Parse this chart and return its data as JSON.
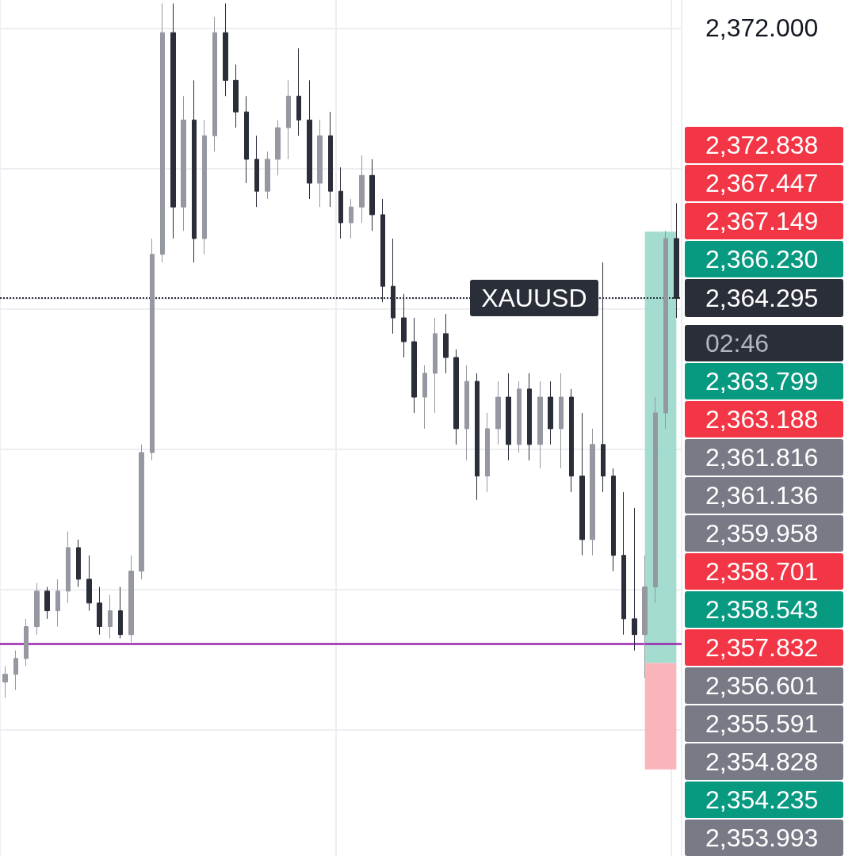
{
  "chart_data": {
    "type": "candlestick",
    "categories": [
      null,
      null,
      null,
      null,
      null,
      null,
      null,
      null,
      null,
      null,
      null,
      null,
      null,
      null,
      null,
      null,
      null,
      null,
      null,
      null,
      null,
      null,
      null,
      null,
      null,
      null,
      null,
      null,
      null,
      null,
      null,
      null,
      null,
      null,
      null,
      null,
      null,
      null,
      null,
      null,
      null,
      null,
      null,
      null,
      null,
      null,
      null,
      null,
      null,
      null,
      null,
      null,
      null,
      null,
      null,
      null,
      null,
      null,
      null,
      null,
      null,
      null,
      null,
      null,
      null
    ],
    "ohlc": [
      [
        2353.36,
        2353.81,
        2352.91,
        2353.58
      ],
      [
        2353.58,
        2354.26,
        2353.13,
        2354.03
      ],
      [
        2354.03,
        2355.16,
        2353.81,
        2354.94
      ],
      [
        2354.94,
        2356.18,
        2354.71,
        2355.95
      ],
      [
        2355.95,
        2356.07,
        2355.16,
        2355.39
      ],
      [
        2355.39,
        2356.29,
        2354.94,
        2355.95
      ],
      [
        2355.95,
        2357.65,
        2355.61,
        2357.19
      ],
      [
        2357.19,
        2357.42,
        2356.07,
        2356.29
      ],
      [
        2356.29,
        2356.97,
        2355.39,
        2355.61
      ],
      [
        2355.61,
        2356.07,
        2354.71,
        2354.94
      ],
      [
        2354.94,
        2355.84,
        2354.6,
        2355.39
      ],
      [
        2355.39,
        2356.07,
        2354.6,
        2354.71
      ],
      [
        2354.71,
        2356.97,
        2354.49,
        2356.52
      ],
      [
        2356.52,
        2360.13,
        2356.29,
        2359.9
      ],
      [
        2359.9,
        2366.0,
        2359.68,
        2365.55
      ],
      [
        2365.55,
        2372.7,
        2365.32,
        2371.87
      ],
      [
        2371.87,
        2372.7,
        2366.0,
        2366.9
      ],
      [
        2366.9,
        2370.06,
        2366.22,
        2369.38
      ],
      [
        2369.38,
        2370.51,
        2365.32,
        2366.0
      ],
      [
        2366.0,
        2369.38,
        2365.55,
        2368.93
      ],
      [
        2368.93,
        2372.32,
        2368.48,
        2371.87
      ],
      [
        2371.87,
        2372.7,
        2370.06,
        2370.51
      ],
      [
        2370.51,
        2370.96,
        2369.16,
        2369.61
      ],
      [
        2369.61,
        2370.06,
        2367.58,
        2368.26
      ],
      [
        2368.26,
        2368.93,
        2366.9,
        2367.35
      ],
      [
        2367.35,
        2368.48,
        2367.13,
        2368.26
      ],
      [
        2368.26,
        2369.38,
        2367.8,
        2369.16
      ],
      [
        2369.16,
        2370.51,
        2368.26,
        2370.06
      ],
      [
        2370.06,
        2371.42,
        2368.93,
        2369.38
      ],
      [
        2369.38,
        2370.51,
        2367.13,
        2367.58
      ],
      [
        2367.58,
        2369.38,
        2366.9,
        2368.93
      ],
      [
        2368.93,
        2369.61,
        2366.9,
        2367.35
      ],
      [
        2367.35,
        2368.03,
        2366.0,
        2366.45
      ],
      [
        2366.45,
        2367.13,
        2366.0,
        2366.9
      ],
      [
        2366.9,
        2368.37,
        2366.45,
        2367.8
      ],
      [
        2367.8,
        2368.26,
        2366.22,
        2366.68
      ],
      [
        2366.68,
        2367.13,
        2364.19,
        2364.64
      ],
      [
        2364.64,
        2366.0,
        2363.29,
        2363.74
      ],
      [
        2363.74,
        2364.42,
        2362.61,
        2363.06
      ],
      [
        2363.06,
        2363.74,
        2361.03,
        2361.48
      ],
      [
        2361.48,
        2362.39,
        2360.58,
        2362.16
      ],
      [
        2362.16,
        2363.74,
        2361.03,
        2363.29
      ],
      [
        2363.29,
        2363.85,
        2362.16,
        2362.61
      ],
      [
        2362.61,
        2362.84,
        2360.13,
        2360.58
      ],
      [
        2360.58,
        2362.39,
        2359.68,
        2361.93
      ],
      [
        2361.93,
        2362.16,
        2358.55,
        2359.23
      ],
      [
        2359.23,
        2361.03,
        2358.77,
        2360.58
      ],
      [
        2360.58,
        2361.93,
        2360.13,
        2361.48
      ],
      [
        2361.48,
        2362.16,
        2359.68,
        2360.13
      ],
      [
        2360.13,
        2361.93,
        2359.9,
        2361.71
      ],
      [
        2361.71,
        2362.16,
        2359.68,
        2360.13
      ],
      [
        2360.13,
        2361.93,
        2359.45,
        2361.48
      ],
      [
        2361.48,
        2361.93,
        2360.13,
        2360.58
      ],
      [
        2360.58,
        2362.16,
        2359.45,
        2361.48
      ],
      [
        2361.48,
        2361.71,
        2358.77,
        2359.23
      ],
      [
        2359.23,
        2361.03,
        2356.97,
        2357.42
      ],
      [
        2357.42,
        2360.58,
        2356.97,
        2360.13
      ],
      [
        2360.13,
        2365.32,
        2358.77,
        2359.23
      ],
      [
        2359.23,
        2359.45,
        2356.52,
        2356.97
      ],
      [
        2356.97,
        2358.77,
        2354.71,
        2355.16
      ],
      [
        2355.16,
        2358.32,
        2354.26,
        2354.71
      ],
      [
        2354.71,
        2356.97,
        2353.47,
        2356.07
      ],
      [
        2356.07,
        2361.48,
        2355.61,
        2361.03
      ],
      [
        2361.03,
        2366.22,
        2360.58,
        2366.0
      ],
      [
        2366.0,
        2367.01,
        2363.74,
        2364.295
      ]
    ],
    "colors": [
      "#9598a1",
      "#9598a1",
      "#9598a1",
      "#9598a1",
      "#2a2e39",
      "#9598a1",
      "#9598a1",
      "#2a2e39",
      "#2a2e39",
      "#2a2e39",
      "#9598a1",
      "#2a2e39",
      "#9598a1",
      "#9598a1",
      "#9598a1",
      "#9598a1",
      "#2a2e39",
      "#9598a1",
      "#2a2e39",
      "#9598a1",
      "#9598a1",
      "#2a2e39",
      "#2a2e39",
      "#2a2e39",
      "#2a2e39",
      "#9598a1",
      "#9598a1",
      "#9598a1",
      "#2a2e39",
      "#2a2e39",
      "#9598a1",
      "#2a2e39",
      "#2a2e39",
      "#9598a1",
      "#9598a1",
      "#2a2e39",
      "#2a2e39",
      "#2a2e39",
      "#2a2e39",
      "#2a2e39",
      "#9598a1",
      "#9598a1",
      "#2a2e39",
      "#2a2e39",
      "#9598a1",
      "#2a2e39",
      "#9598a1",
      "#9598a1",
      "#2a2e39",
      "#9598a1",
      "#2a2e39",
      "#9598a1",
      "#2a2e39",
      "#9598a1",
      "#2a2e39",
      "#2a2e39",
      "#9598a1",
      "#2a2e39",
      "#2a2e39",
      "#2a2e39",
      "#2a2e39",
      "#9598a1",
      "#9598a1",
      "#9598a1",
      "#2a2e39"
    ],
    "ylim": [
      2348.4,
      2372.8
    ],
    "yticks": [
      {
        "value": 2372,
        "label": "2,372.000"
      },
      {
        "value": 2368,
        "label": null
      },
      {
        "value": 2364.295,
        "label": "2,364.295"
      },
      {
        "value": 2364,
        "label": null
      },
      {
        "value": 2360,
        "label": null
      },
      {
        "value": 2356,
        "label": null
      },
      {
        "value": 2352,
        "label": null
      }
    ],
    "tick_labels": "y",
    "grid": true,
    "bands": [
      {
        "axis": "y",
        "from": 2353.9,
        "to": 2366.2,
        "color": "#9ad8cb"
      },
      {
        "axis": "y",
        "from": 2350.87,
        "to": 2353.9,
        "color": "#faadb4"
      }
    ],
    "ref_lines": [
      {
        "axis": "y",
        "value": 2364.295,
        "label": "XAUUSD",
        "color": "#2a2e39",
        "line_style": "dotted"
      },
      {
        "axis": "y",
        "value": 2354.44,
        "color": "#9c27b0",
        "line_style": "solid"
      }
    ],
    "annotations": [
      "2,372.838",
      "2,367.447",
      "2,367.149",
      "2,366.230",
      "02:46",
      "2,363.799",
      "2,363.188",
      "2,361.816",
      "2,361.136",
      "2,359.958",
      "2,358.701",
      "2,358.543",
      "2,357.832",
      "2,356.601",
      "2,355.591",
      "2,354.828",
      "2,354.235",
      "2,353.993"
    ]
  }
}
